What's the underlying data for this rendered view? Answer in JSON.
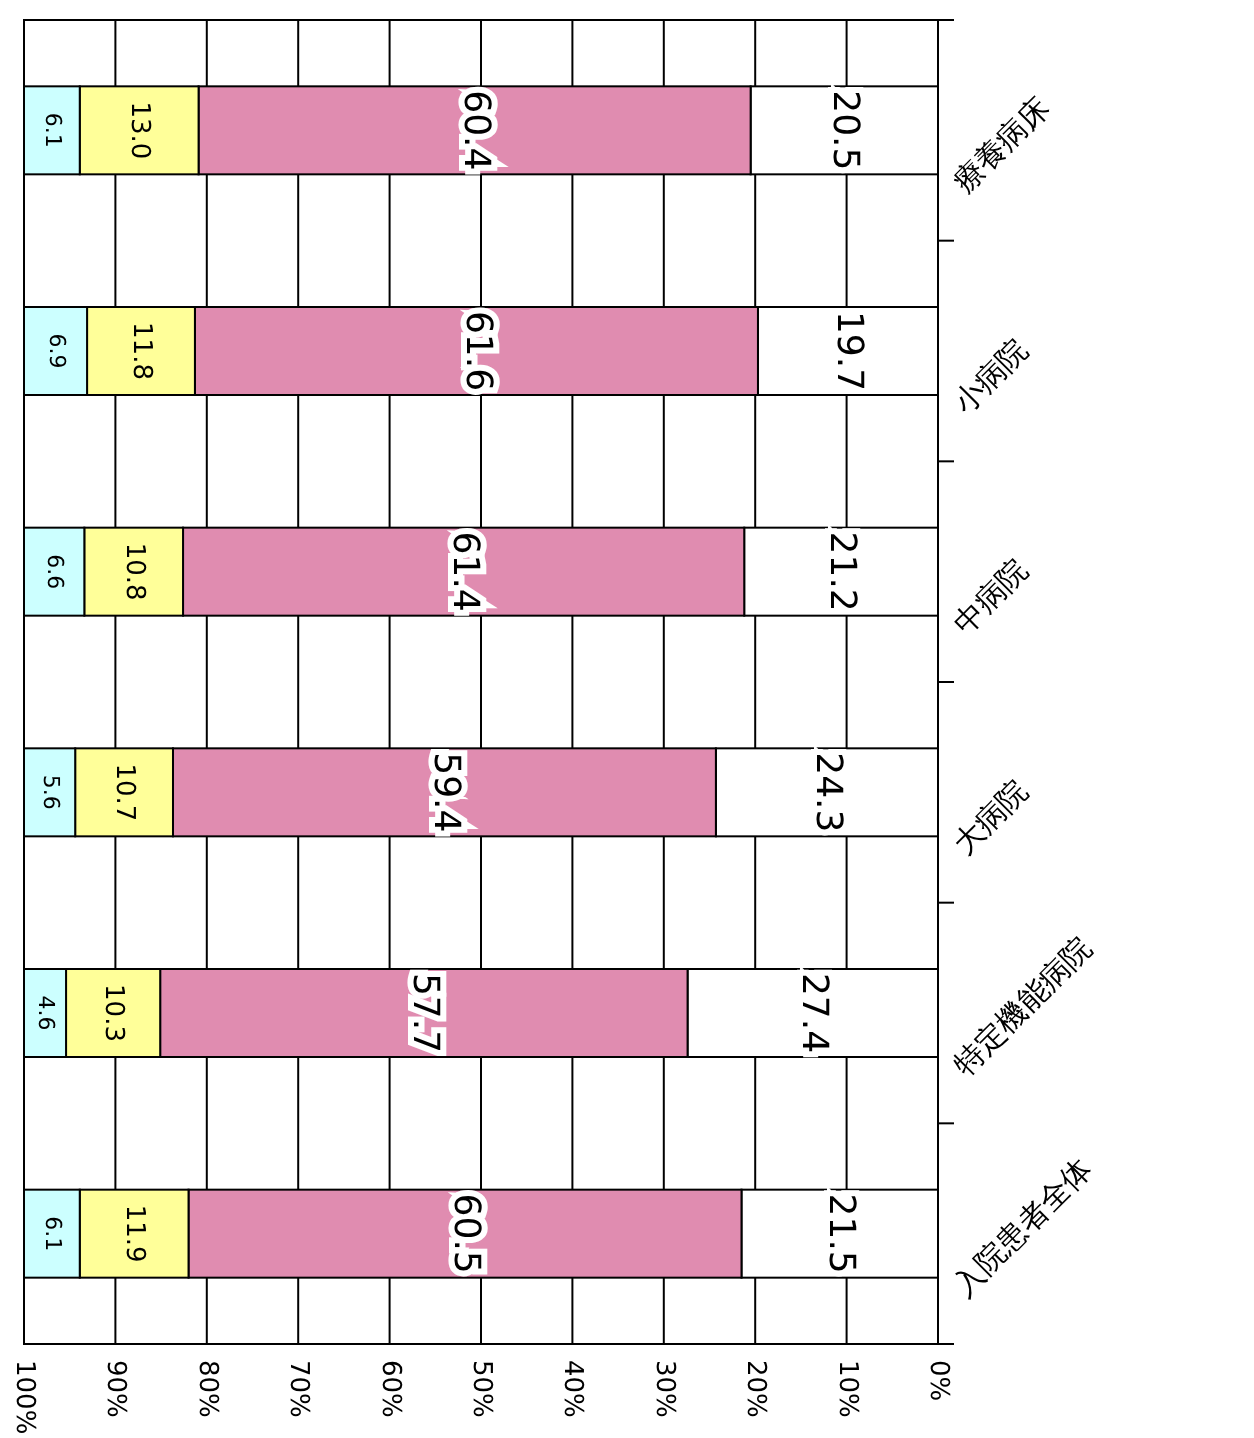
{
  "chart_data": {
    "type": "bar",
    "orientation": "horizontal",
    "stacked": true,
    "grid": "x",
    "categories": [
      "療養病床",
      "小病院",
      "中病院",
      "大病院",
      "特定機能病院",
      "入院患者全体"
    ],
    "series": [
      {
        "color": "#ffffff",
        "values": [
          20.5,
          19.7,
          21.2,
          24.3,
          27.4,
          21.5
        ],
        "value_labels": [
          "20.5",
          "19.7",
          "21.2",
          "24.3",
          "27.4",
          "21.5"
        ]
      },
      {
        "color": "#e08cb0",
        "values": [
          60.4,
          61.6,
          61.4,
          59.4,
          57.7,
          60.5
        ],
        "value_labels": [
          "60.4",
          "61.6",
          "61.4",
          "59.4",
          "57.7",
          "60.5"
        ]
      },
      {
        "color": "#ffff99",
        "values": [
          13.0,
          11.8,
          10.8,
          10.7,
          10.3,
          11.9
        ],
        "value_labels": [
          "13.0",
          "11.8",
          "10.8",
          "10.7",
          "10.3",
          "11.9"
        ]
      },
      {
        "color": "#ccffff",
        "values": [
          6.1,
          6.9,
          6.6,
          5.6,
          4.6,
          6.1
        ],
        "value_labels": [
          "6.1",
          "6.9",
          "6.6",
          "5.6",
          "4.6",
          "6.1"
        ]
      }
    ],
    "xlim": [
      100,
      0
    ],
    "xticks": [
      {
        "value": 100,
        "label": "100%"
      },
      {
        "value": 90,
        "label": "90%"
      },
      {
        "value": 80,
        "label": "80%"
      },
      {
        "value": 70,
        "label": "70%"
      },
      {
        "value": 60,
        "label": "60%"
      },
      {
        "value": 50,
        "label": "50%"
      },
      {
        "value": 40,
        "label": "40%"
      },
      {
        "value": 30,
        "label": "30%"
      },
      {
        "value": 20,
        "label": "20%"
      },
      {
        "value": 10,
        "label": "10%"
      },
      {
        "value": 0,
        "label": "0%"
      }
    ]
  }
}
